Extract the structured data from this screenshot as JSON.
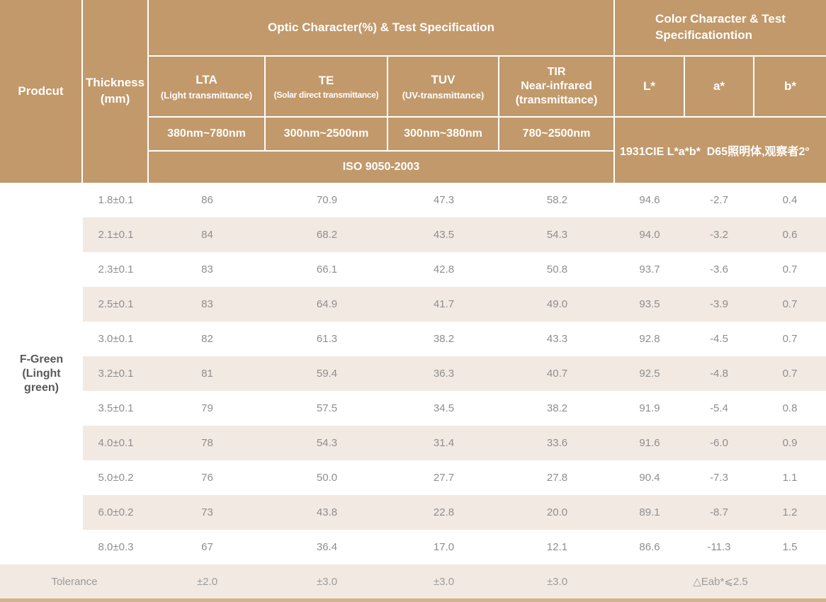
{
  "header": {
    "product_label": "Prodcut",
    "thickness_label": "Thickness\n(mm)",
    "optic_section_title": "Optic Character(%) & Test Specification",
    "color_section_title": "Color Character & Test\nSpecificationtion",
    "optic_columns": [
      {
        "name": "LTA",
        "subtitle": "(Light transmittance)",
        "range": "380nm~780nm"
      },
      {
        "name": "TE",
        "subtitle": "(Solar direct transmittance)",
        "range": "300nm~2500nm"
      },
      {
        "name": "TUV",
        "subtitle": "(UV-transmittance)",
        "range": "300nm~380nm"
      },
      {
        "name": "TIR\nNear-infrared\n(transmittance)",
        "subtitle": "",
        "range": "780~2500nm"
      }
    ],
    "iso_label": "ISO 9050-2003",
    "lab_columns": [
      "L*",
      "a*",
      "b*"
    ],
    "cie_label": "1931CIE L*a*b*  D65照明体,观察者2°"
  },
  "product_name": "F-Green (Linght green)",
  "table": {
    "rows": [
      {
        "thickness": "1.8±0.1",
        "lta": "86",
        "te": "70.9",
        "tuv": "47.3",
        "tir": "58.2",
        "l": "94.6",
        "a": "-2.7",
        "b": "0.4"
      },
      {
        "thickness": "2.1±0.1",
        "lta": "84",
        "te": "68.2",
        "tuv": "43.5",
        "tir": "54.3",
        "l": "94.0",
        "a": "-3.2",
        "b": "0.6"
      },
      {
        "thickness": "2.3±0.1",
        "lta": "83",
        "te": "66.1",
        "tuv": "42.8",
        "tir": "50.8",
        "l": "93.7",
        "a": "-3.6",
        "b": "0.7"
      },
      {
        "thickness": "2.5±0.1",
        "lta": "83",
        "te": "64.9",
        "tuv": "41.7",
        "tir": "49.0",
        "l": "93.5",
        "a": "-3.9",
        "b": "0.7"
      },
      {
        "thickness": "3.0±0.1",
        "lta": "82",
        "te": "61.3",
        "tuv": "38.2",
        "tir": "43.3",
        "l": "92.8",
        "a": "-4.5",
        "b": "0.7"
      },
      {
        "thickness": "3.2±0.1",
        "lta": "81",
        "te": "59.4",
        "tuv": "36.3",
        "tir": "40.7",
        "l": "92.5",
        "a": "-4.8",
        "b": "0.7"
      },
      {
        "thickness": "3.5±0.1",
        "lta": "79",
        "te": "57.5",
        "tuv": "34.5",
        "tir": "38.2",
        "l": "91.9",
        "a": "-5.4",
        "b": "0.8"
      },
      {
        "thickness": "4.0±0.1",
        "lta": "78",
        "te": "54.3",
        "tuv": "31.4",
        "tir": "33.6",
        "l": "91.6",
        "a": "-6.0",
        "b": "0.9"
      },
      {
        "thickness": "5.0±0.2",
        "lta": "76",
        "te": "50.0",
        "tuv": "27.7",
        "tir": "27.8",
        "l": "90.4",
        "a": "-7.3",
        "b": "1.1"
      },
      {
        "thickness": "6.0±0.2",
        "lta": "73",
        "te": "43.8",
        "tuv": "22.8",
        "tir": "20.0",
        "l": "89.1",
        "a": "-8.7",
        "b": "1.2"
      },
      {
        "thickness": "8.0±0.3",
        "lta": "67",
        "te": "36.4",
        "tuv": "17.0",
        "tir": "12.1",
        "l": "86.6",
        "a": "-11.3",
        "b": "1.5"
      }
    ],
    "tolerance": {
      "label": "Tolerance",
      "lta": "±2.0",
      "te": "±3.0",
      "tuv": "±3.0",
      "tir": "±3.0",
      "eab": "△Eab*⩽2.5"
    }
  },
  "colors": {
    "header_bg": "#c2996b",
    "row_alt_bg": "#f2e9e3",
    "bottom_bar": "#d3b387",
    "data_text": "#8e8e8e",
    "product_text": "#58595b"
  }
}
